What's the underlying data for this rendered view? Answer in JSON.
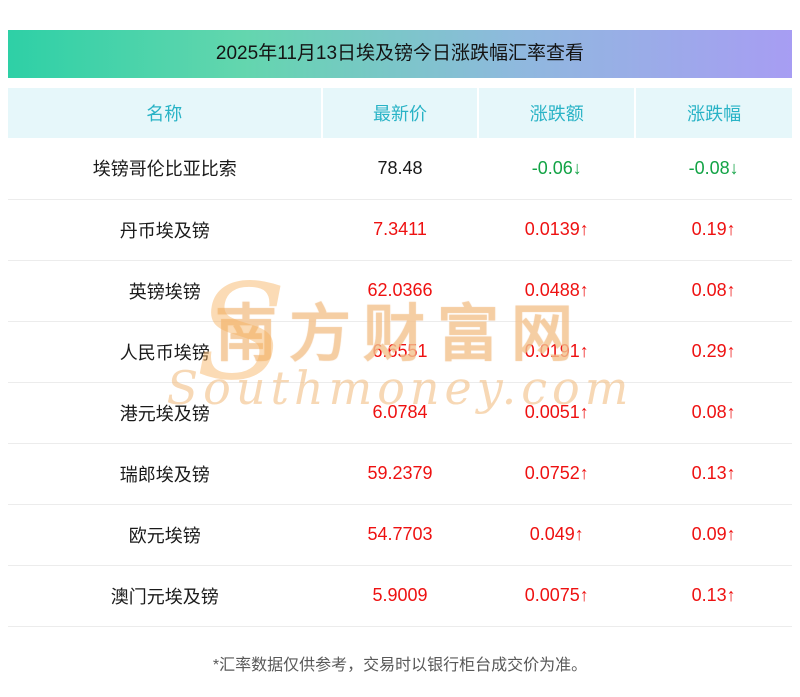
{
  "title": "2025年11月13日埃及镑今日涨跌幅汇率查看",
  "chart_data": {
    "type": "table",
    "title": "2025年11月13日埃及镑今日涨跌幅汇率查看",
    "columns": [
      "名称",
      "最新价",
      "涨跌额",
      "涨跌幅"
    ],
    "rows": [
      {
        "name": "埃镑哥伦比亚比索",
        "price": "78.48",
        "change": "-0.06↓",
        "pct": "-0.08↓",
        "direction": "down"
      },
      {
        "name": "丹币埃及镑",
        "price": "7.3411",
        "change": "0.0139↑",
        "pct": "0.19↑",
        "direction": "up"
      },
      {
        "name": "英镑埃镑",
        "price": "62.0366",
        "change": "0.0488↑",
        "pct": "0.08↑",
        "direction": "up"
      },
      {
        "name": "人民币埃镑",
        "price": "6.6551",
        "change": "0.0191↑",
        "pct": "0.29↑",
        "direction": "up"
      },
      {
        "name": "港元埃及镑",
        "price": "6.0784",
        "change": "0.0051↑",
        "pct": "0.08↑",
        "direction": "up"
      },
      {
        "name": "瑞郎埃及镑",
        "price": "59.2379",
        "change": "0.0752↑",
        "pct": "0.13↑",
        "direction": "up"
      },
      {
        "name": "欧元埃镑",
        "price": "54.7703",
        "change": "0.049↑",
        "pct": "0.09↑",
        "direction": "up"
      },
      {
        "name": "澳门元埃及镑",
        "price": "5.9009",
        "change": "0.0075↑",
        "pct": "0.13↑",
        "direction": "up"
      }
    ]
  },
  "footnote": "*汇率数据仅供参考，交易时以银行柜台成交价为准。",
  "watermark": {
    "cn": "南方财富网",
    "en_initial": "S",
    "en_rest": "outhmoney.com"
  },
  "colors": {
    "up_red": "#ee1111",
    "down_green": "#12a345",
    "header_teal": "#29b3c6",
    "header_bg": "#e6f7fa",
    "title_gradient_left": "#2ed0a6",
    "title_gradient_right": "#a79df3"
  }
}
